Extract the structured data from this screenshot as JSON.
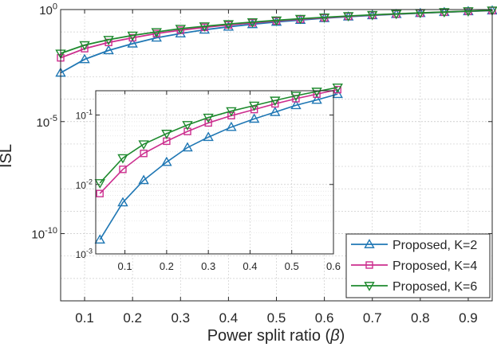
{
  "chart_data": [
    {
      "type": "line",
      "role": "main",
      "xlabel_prefix": "Power split ratio (",
      "xlabel_symbol": "β",
      "xlabel_suffix": ")",
      "ylabel": "ISL",
      "x_scale": "linear",
      "y_scale": "log",
      "xlim": [
        0.05,
        0.95
      ],
      "ylim_exp": [
        -13,
        0
      ],
      "x_ticks": [
        0.1,
        0.2,
        0.3,
        0.4,
        0.5,
        0.6,
        0.7,
        0.8,
        0.9
      ],
      "x_tick_labels": [
        "0.1",
        "0.2",
        "0.3",
        "0.4",
        "0.5",
        "0.6",
        "0.7",
        "0.8",
        "0.9"
      ],
      "y_tick_exps": [
        0,
        -5,
        -10
      ],
      "y_tick_labels": [
        {
          "base": "10",
          "exp": "0"
        },
        {
          "base": "10",
          "exp": "-5"
        },
        {
          "base": "10",
          "exp": "-10"
        }
      ],
      "grid": true,
      "legend_position": "bottom-right",
      "x": [
        0.05,
        0.1,
        0.15,
        0.2,
        0.25,
        0.3,
        0.35,
        0.4,
        0.45,
        0.5,
        0.55,
        0.6,
        0.65,
        0.7,
        0.75,
        0.8,
        0.85,
        0.9,
        0.95
      ],
      "series": [
        {
          "name": "Proposed, K=2",
          "color": "#1f77b4",
          "marker": "triangle-up",
          "values": [
            0.0015,
            0.006,
            0.015,
            0.03,
            0.055,
            0.085,
            0.125,
            0.17,
            0.22,
            0.28,
            0.34,
            0.41,
            0.48,
            0.55,
            0.62,
            0.69,
            0.76,
            0.83,
            0.9
          ]
        },
        {
          "name": "Proposed, K=4",
          "color": "#cc2e8e",
          "marker": "square",
          "values": [
            0.007,
            0.018,
            0.034,
            0.055,
            0.085,
            0.12,
            0.16,
            0.205,
            0.255,
            0.31,
            0.37,
            0.43,
            0.5,
            0.57,
            0.635,
            0.7,
            0.77,
            0.84,
            0.91
          ]
        },
        {
          "name": "Proposed, K=6",
          "color": "#1e8a2e",
          "marker": "triangle-down",
          "values": [
            0.011,
            0.026,
            0.045,
            0.07,
            0.1,
            0.14,
            0.18,
            0.225,
            0.275,
            0.33,
            0.39,
            0.45,
            0.515,
            0.58,
            0.645,
            0.71,
            0.78,
            0.85,
            0.92
          ]
        }
      ]
    },
    {
      "type": "line",
      "role": "inset",
      "x_scale": "linear",
      "y_scale": "log",
      "xlim": [
        0.03,
        0.6
      ],
      "ylim_exp": [
        -3,
        -0.65
      ],
      "x_ticks": [
        0.1,
        0.2,
        0.3,
        0.4,
        0.5,
        0.6
      ],
      "x_tick_labels": [
        "0.1",
        "0.2",
        "0.3",
        "0.4",
        "0.5",
        "0.6"
      ],
      "y_tick_exps": [
        -1,
        -2,
        -3
      ],
      "y_tick_labels": [
        {
          "base": "10",
          "exp": "-1"
        },
        {
          "base": "10",
          "exp": "-2"
        },
        {
          "base": "10",
          "exp": "-3"
        }
      ],
      "grid": true,
      "x": [
        0.04,
        0.095,
        0.145,
        0.2,
        0.25,
        0.3,
        0.355,
        0.41,
        0.46,
        0.51,
        0.56,
        0.61
      ],
      "series": [
        {
          "name": "Proposed, K=2",
          "color": "#1f77b4",
          "marker": "triangle-up",
          "values": [
            0.0016,
            0.0055,
            0.0115,
            0.021,
            0.034,
            0.048,
            0.067,
            0.088,
            0.11,
            0.138,
            0.165,
            0.2
          ]
        },
        {
          "name": "Proposed, K=4",
          "color": "#cc2e8e",
          "marker": "square",
          "values": [
            0.0074,
            0.0165,
            0.028,
            0.042,
            0.058,
            0.077,
            0.098,
            0.12,
            0.145,
            0.172,
            0.2,
            0.232
          ]
        },
        {
          "name": "Proposed, K=6",
          "color": "#1e8a2e",
          "marker": "triangle-down",
          "values": [
            0.0105,
            0.024,
            0.038,
            0.054,
            0.072,
            0.092,
            0.114,
            0.137,
            0.162,
            0.19,
            0.218,
            0.25
          ]
        }
      ]
    }
  ]
}
